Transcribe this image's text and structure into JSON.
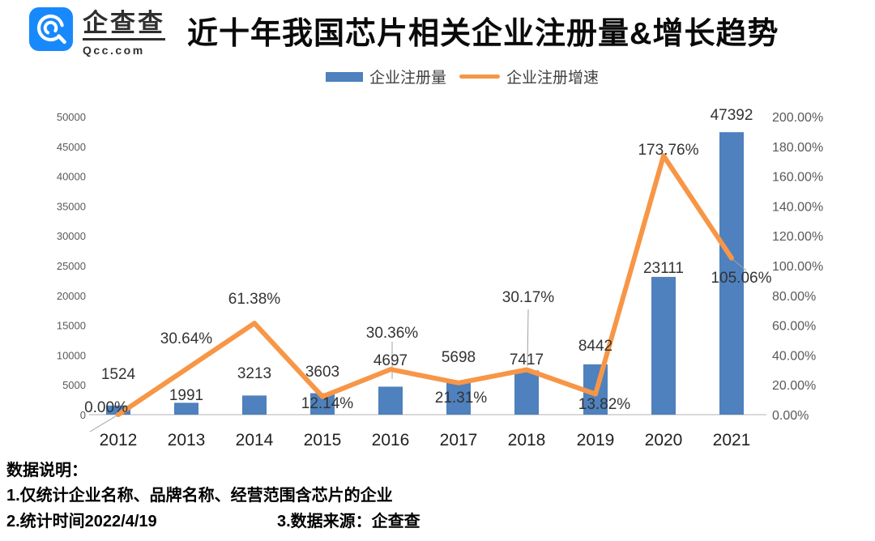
{
  "header": {
    "logo": {
      "brand_text": "企查查",
      "domain_text": "Qcc.com"
    },
    "title": "近十年我国芯片相关企业注册量&增长趋势"
  },
  "legend": {
    "bar_label": "企业注册量",
    "line_label": "企业注册增速"
  },
  "colors": {
    "bar": "#4E81BD",
    "line": "#F79646",
    "axis_line": "#C0C0C0",
    "leader_line": "#A0A0A0",
    "logo_blue": "#1889FC"
  },
  "chart_data": {
    "type": "combo-bar-line",
    "title": "近十年我国芯片相关企业注册量&增长趋势",
    "categories": [
      "2012",
      "2013",
      "2014",
      "2015",
      "2016",
      "2017",
      "2018",
      "2019",
      "2020",
      "2021"
    ],
    "series": [
      {
        "name": "企业注册量",
        "type": "bar",
        "axis": "left",
        "color": "#4E81BD",
        "values": [
          1524,
          1991,
          3213,
          3603,
          4697,
          5698,
          7417,
          8442,
          23111,
          47392
        ],
        "labels": [
          "1524",
          "1991",
          "3213",
          "3603",
          "4697",
          "5698",
          "7417",
          "8442",
          "23111",
          "47392"
        ]
      },
      {
        "name": "企业注册增速",
        "type": "line",
        "axis": "right",
        "color": "#F79646",
        "values": [
          0,
          30.64,
          61.38,
          12.14,
          30.36,
          21.31,
          30.17,
          13.82,
          173.76,
          105.06
        ],
        "labels": [
          "0.00%",
          "30.64%",
          "61.38%",
          "12.14%",
          "30.36%",
          "21.31%",
          "30.17%",
          "13.82%",
          "173.76%",
          "105.06%"
        ]
      }
    ],
    "left_axis": {
      "min": 0,
      "max": 50000,
      "ticks": [
        "0",
        "5000",
        "10000",
        "15000",
        "20000",
        "25000",
        "30000",
        "35000",
        "40000",
        "45000",
        "50000"
      ]
    },
    "right_axis": {
      "min": 0,
      "max": 200,
      "ticks": [
        "0.00%",
        "20.00%",
        "40.00%",
        "60.00%",
        "80.00%",
        "100.00%",
        "120.00%",
        "140.00%",
        "160.00%",
        "180.00%",
        "200.00%"
      ]
    },
    "grid": false,
    "legend_position": "top-center"
  },
  "footer": {
    "heading": "数据说明：",
    "note1": "1.仅统计企业名称、品牌名称、经营范围含芯片的企业",
    "note2": "2.统计时间2022/4/19",
    "note3": "3.数据来源：企查查"
  }
}
